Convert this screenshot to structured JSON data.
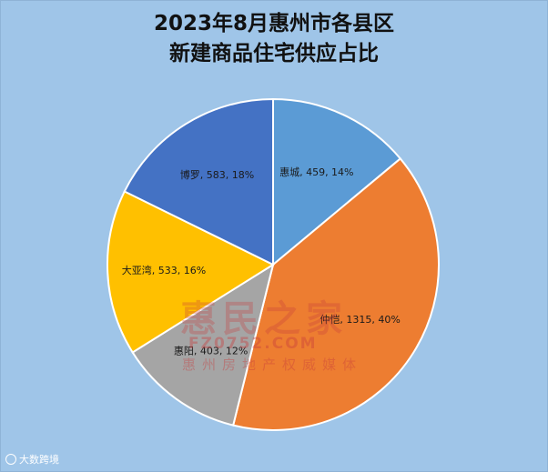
{
  "chart_data": {
    "type": "pie",
    "title_lines": [
      "2023年8月惠州市各县区",
      "新建商品住宅供应占比"
    ],
    "slices": [
      {
        "name": "惠城",
        "value": 459,
        "percent": "14%",
        "color": "#5b9bd5"
      },
      {
        "name": "仲恺",
        "value": 1315,
        "percent": "40%",
        "color": "#ed7d31"
      },
      {
        "name": "惠阳",
        "value": 403,
        "percent": "12%",
        "color": "#a5a5a5"
      },
      {
        "name": "大亚湾",
        "value": 533,
        "percent": "16%",
        "color": "#ffc000"
      },
      {
        "name": "博罗",
        "value": 583,
        "percent": "18%",
        "color": "#4472c4"
      }
    ],
    "start": "12 o'clock",
    "direction": "clockwise",
    "legend": "none"
  },
  "watermark": {
    "brand": "惠民之家",
    "url": "FZ0752.COM",
    "tagline": "惠州房地产权威媒体"
  },
  "corner_logo": {
    "text": "大数跨境"
  }
}
